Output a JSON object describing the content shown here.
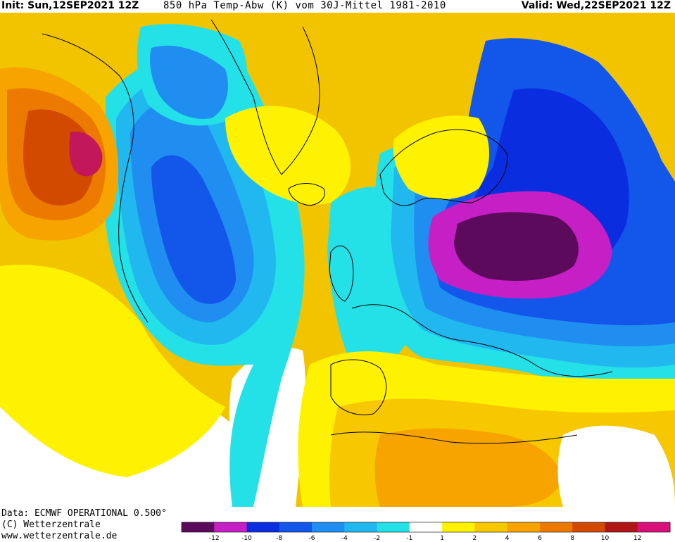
{
  "header": {
    "init": "Init: Sun,12SEP2021 12Z",
    "title": "850 hPa Temp-Abw (K) vom 30J-Mittel 1981-2010",
    "valid": "Valid: Wed,22SEP2021 12Z"
  },
  "footer": {
    "data_source": "Data: ECMWF OPERATIONAL 0.500°",
    "copyright": "(C) Wetterzentrale",
    "website": "www.wetterzentrale.de"
  },
  "legend": {
    "tick_labels": [
      "-12",
      "-10",
      "-8",
      "-6",
      "-4",
      "-2",
      "-1",
      "1",
      "2",
      "4",
      "6",
      "8",
      "10",
      "12"
    ],
    "colors": [
      "#5c0b5c",
      "#c51fc5",
      "#0b2de0",
      "#1356ea",
      "#1f8ef0",
      "#21b8ef",
      "#24e1e8",
      "#ffffff",
      "#fff200",
      "#f7c800",
      "#f7a300",
      "#ec7a00",
      "#d24a00",
      "#b01616",
      "#d8107a"
    ]
  },
  "map": {
    "palette": {
      "ocean_base": "#f2c400",
      "neutral": "#ffffff",
      "warm_yellow": "#fff200",
      "warm_gold": "#f7c800",
      "warm_orange": "#f7a300",
      "warm_dark_orange": "#ec7a00",
      "hot_red_orange": "#d24a00",
      "hot_red": "#b01616",
      "hot_magenta": "#c2175a",
      "cool_cyan": "#24e1e8",
      "cool_sky": "#21b8ef",
      "cool_blue": "#1f8ef0",
      "cool_mid_blue": "#1356ea",
      "cool_deep_blue": "#0b2de0",
      "cold_magenta": "#c51fc5",
      "cold_purple": "#5c0b5c",
      "coastline": "#000000"
    }
  }
}
